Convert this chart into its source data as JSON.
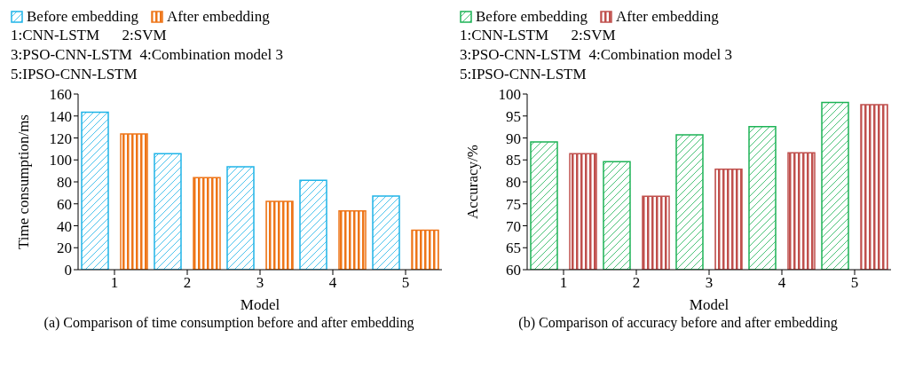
{
  "chart_data": [
    {
      "type": "bar",
      "title": "(a) Comparison of time consumption before and after embedding",
      "xlabel": "Model",
      "ylabel": "Time consumption/ms",
      "categories": [
        "1",
        "2",
        "3",
        "4",
        "5"
      ],
      "series": [
        {
          "name": "Before embedding",
          "color": "#1fb4e8",
          "values": [
            143.5,
            105.6,
            93.7,
            81.4,
            67
          ]
        },
        {
          "name": "After embedding",
          "color": "#ee7518",
          "values": [
            123.7,
            83.9,
            62.2,
            53.5,
            36
          ]
        }
      ],
      "ylim": [
        0,
        160
      ],
      "yticks": [
        0,
        20,
        40,
        60,
        80,
        100,
        120,
        140,
        160
      ],
      "legend": "top left",
      "annotations": [
        "1:CNN-LSTM      2:SVM",
        "3:PSO-CNN-LSTM  4:Combination model 3",
        "5:IPSO-CNN-LSTM"
      ]
    },
    {
      "type": "bar",
      "title": "(b) Comparison of accuracy before and after embedding",
      "xlabel": "Model",
      "ylabel": "Accuracy/%",
      "categories": [
        "1",
        "2",
        "3",
        "4",
        "5"
      ],
      "series": [
        {
          "name": "Before embedding",
          "color": "#1db356",
          "values": [
            89.1,
            84.6,
            90.7,
            92.6,
            98.1
          ]
        },
        {
          "name": "After embedding",
          "color": "#c0504d",
          "values": [
            86.4,
            76.7,
            82.9,
            86.6,
            97.6
          ]
        }
      ],
      "ylim": [
        60,
        100
      ],
      "yticks": [
        60,
        65,
        70,
        75,
        80,
        85,
        90,
        95,
        100
      ],
      "legend": "top left",
      "annotations": [
        "1:CNN-LSTM      2:SVM",
        "3:PSO-CNN-LSTM  4:Combination model 3",
        "5:IPSO-CNN-LSTM"
      ]
    }
  ]
}
